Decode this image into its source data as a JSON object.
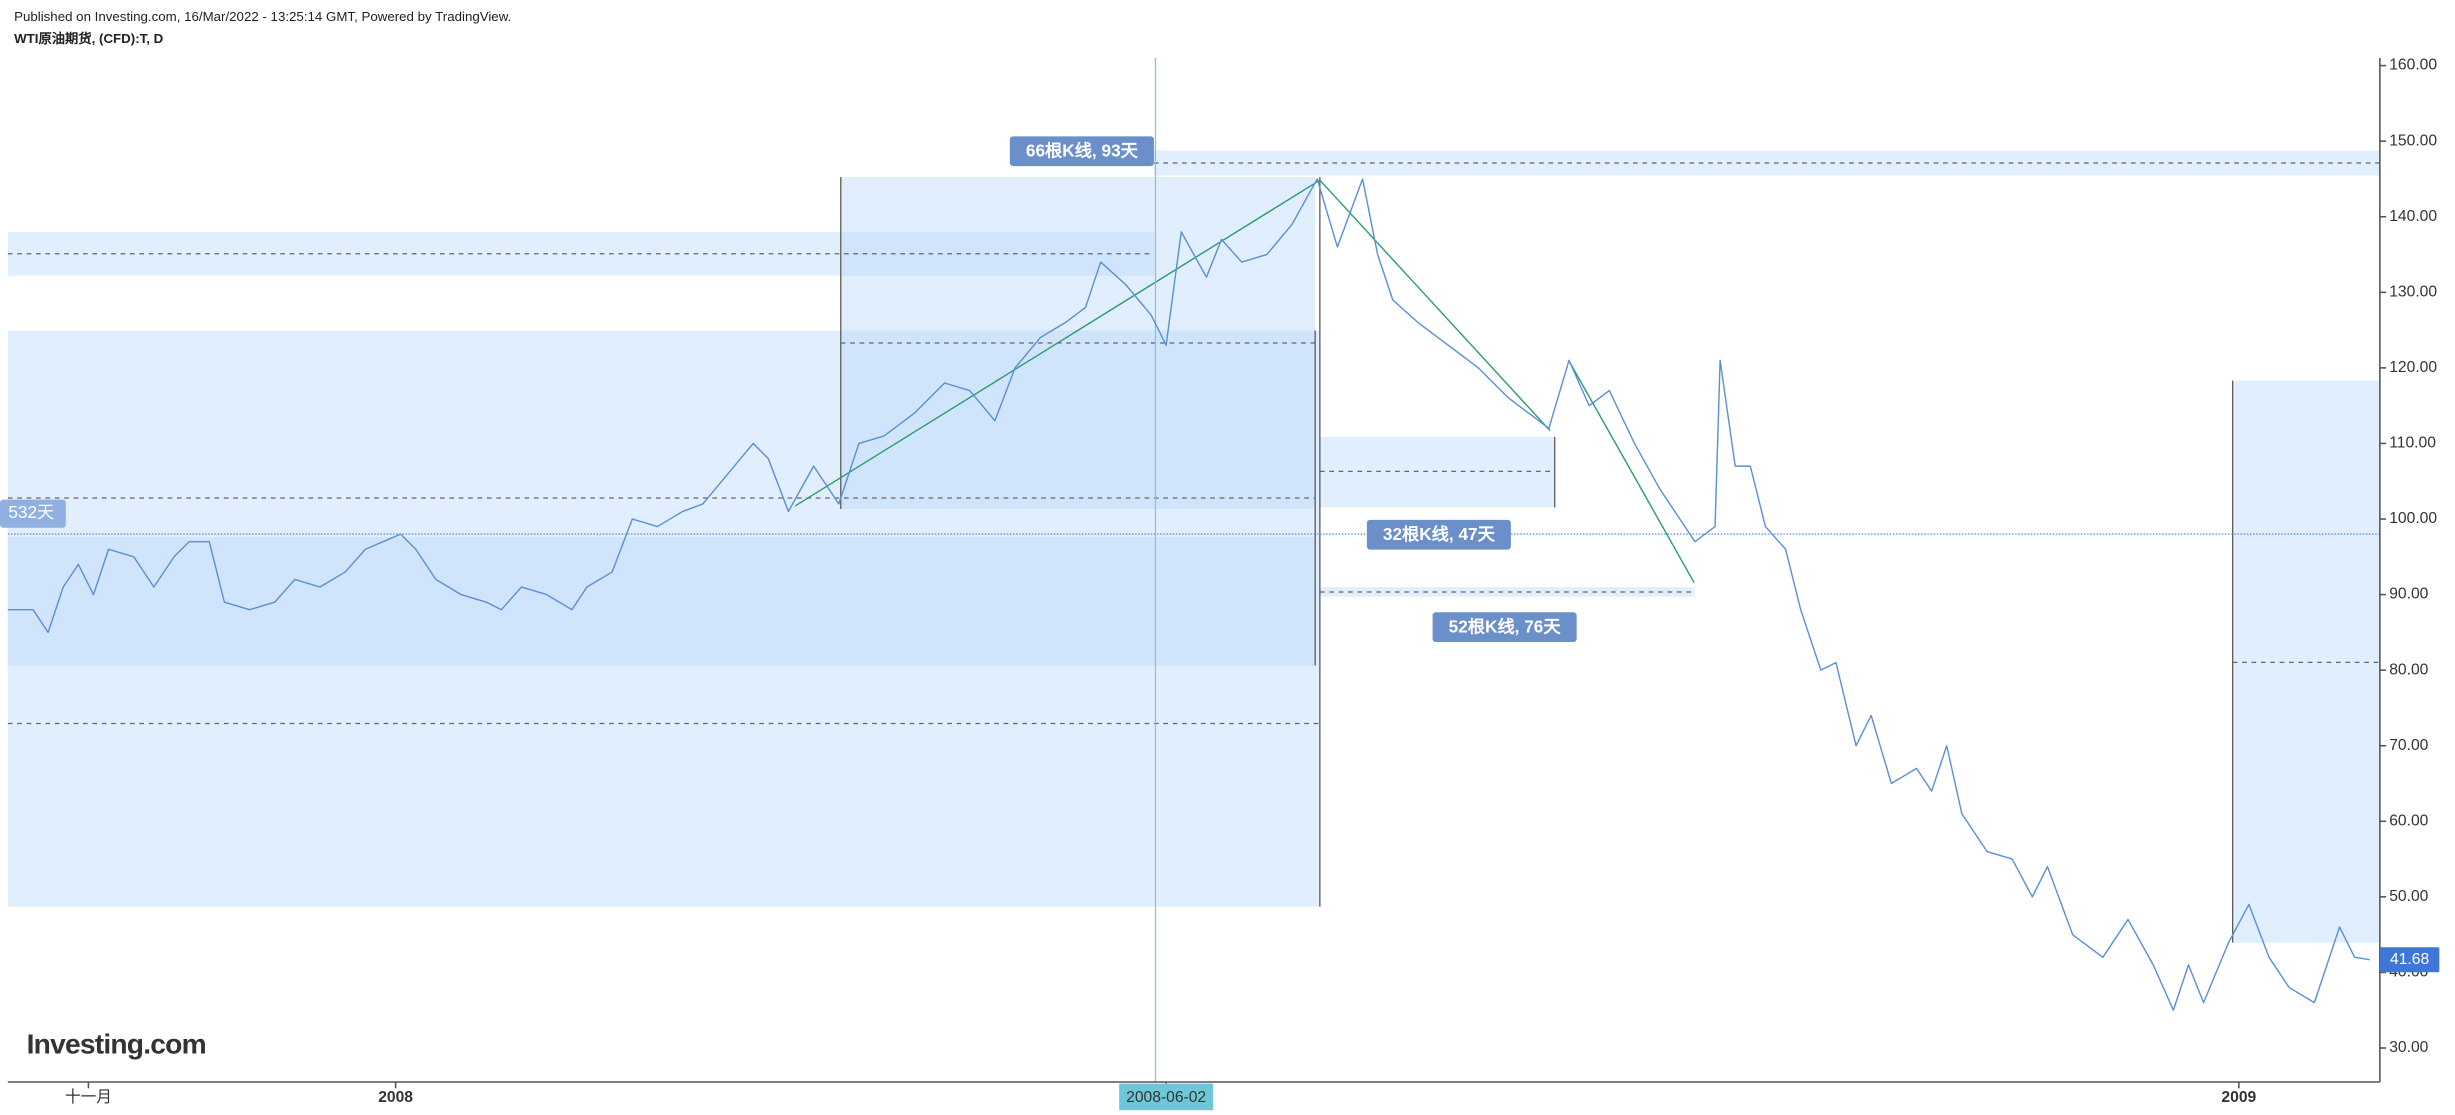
{
  "chart_data": {
    "type": "line",
    "title": "WTI原油期货, (CFD):T, D",
    "subtitle": "Published on Investing.com, 16/Mar/2022 - 13:25:14 GMT, Powered by TradingView.",
    "logo": "Investing.com",
    "annotations": [
      "66根K线, 93天",
      "32根K线, 47天",
      "52根K线, 76天",
      "532天"
    ],
    "xlim": [
      "2007-10-16",
      "2009-01-29"
    ],
    "xticks": [
      {
        "value": "2007-11-01",
        "label": "十一月"
      },
      {
        "value": "2008-01-01",
        "label": "2008"
      },
      "2008-06-02",
      {
        "value": "2009-01-01",
        "label": "2009"
      }
    ],
    "ylim": [
      25.5,
      161
    ],
    "yticks": [
      {
        "value": 30,
        "label": "30.00"
      },
      {
        "value": 40,
        "label": "40.00"
      },
      {
        "value": 50,
        "label": "50.00"
      },
      {
        "value": 60,
        "label": "60.00"
      },
      {
        "value": 70,
        "label": "70.00"
      },
      {
        "value": 80,
        "label": "80.00"
      },
      {
        "value": 90,
        "label": "90.00"
      },
      {
        "value": 100,
        "label": "100.00"
      },
      {
        "value": 110,
        "label": "110.00"
      },
      {
        "value": 120,
        "label": "120.00"
      },
      {
        "value": 130,
        "label": "130.00"
      },
      {
        "value": 140,
        "label": "140.00"
      },
      {
        "value": 150,
        "label": "150.00"
      },
      {
        "value": 160,
        "label": "160.00"
      }
    ],
    "x": [
      "2007-10-16",
      "2007-10-21",
      "2007-10-24",
      "2007-10-27",
      "2007-10-30",
      "2007-11-02",
      "2007-11-05",
      "2007-11-10",
      "2007-11-14",
      "2007-11-18",
      "2007-11-21",
      "2007-11-25",
      "2007-11-28",
      "2007-12-03",
      "2007-12-08",
      "2007-12-12",
      "2007-12-17",
      "2007-12-22",
      "2007-12-26",
      "2008-01-02",
      "2008-01-05",
      "2008-01-09",
      "2008-01-14",
      "2008-01-19",
      "2008-01-22",
      "2008-01-26",
      "2008-01-31",
      "2008-02-05",
      "2008-02-08",
      "2008-02-13",
      "2008-02-17",
      "2008-02-22",
      "2008-02-27",
      "2008-03-02",
      "2008-03-07",
      "2008-03-12",
      "2008-03-15",
      "2008-03-19",
      "2008-03-24",
      "2008-03-29",
      "2008-04-02",
      "2008-04-07",
      "2008-04-13",
      "2008-04-19",
      "2008-04-24",
      "2008-04-29",
      "2008-05-03",
      "2008-05-08",
      "2008-05-13",
      "2008-05-17",
      "2008-05-20",
      "2008-05-25",
      "2008-05-30",
      "2008-06-02",
      "2008-06-05",
      "2008-06-10",
      "2008-06-13",
      "2008-06-17",
      "2008-06-22",
      "2008-06-27",
      "2008-07-02",
      "2008-07-06",
      "2008-07-11",
      "2008-07-14",
      "2008-07-17",
      "2008-07-22",
      "2008-07-28",
      "2008-08-03",
      "2008-08-09",
      "2008-08-17",
      "2008-08-21",
      "2008-08-25",
      "2008-08-29",
      "2008-09-03",
      "2008-09-08",
      "2008-09-12",
      "2008-09-15",
      "2008-09-19",
      "2008-09-20",
      "2008-09-23",
      "2008-09-26",
      "2008-09-29",
      "2008-10-03",
      "2008-10-06",
      "2008-10-10",
      "2008-10-13",
      "2008-10-17",
      "2008-10-20",
      "2008-10-24",
      "2008-10-29",
      "2008-11-01",
      "2008-11-04",
      "2008-11-07",
      "2008-11-12",
      "2008-11-17",
      "2008-11-21",
      "2008-11-24",
      "2008-11-29",
      "2008-12-05",
      "2008-12-10",
      "2008-12-15",
      "2008-12-19",
      "2008-12-22",
      "2008-12-25",
      "2008-12-30",
      "2009-01-03",
      "2009-01-07",
      "2009-01-11",
      "2009-01-16",
      "2009-01-21",
      "2009-01-24",
      "2009-01-27"
    ],
    "series": [
      {
        "name": "WTI",
        "color": "#5b8fd6",
        "values": [
          88,
          88,
          85,
          91,
          94,
          90,
          96,
          95,
          91,
          95,
          97,
          97,
          89,
          88,
          89,
          92,
          91,
          93,
          96,
          98,
          96,
          92,
          90,
          89,
          88,
          91,
          90,
          88,
          91,
          93,
          100,
          99,
          101,
          102,
          106,
          110,
          108,
          101,
          107,
          102,
          110,
          111,
          114,
          118,
          117,
          113,
          120,
          124,
          126,
          128,
          134,
          131,
          127,
          123,
          138,
          132,
          137,
          134,
          135,
          139,
          145,
          136,
          145,
          135,
          129,
          126,
          123,
          120,
          116,
          112,
          121,
          115,
          117,
          110,
          104,
          100,
          97,
          99,
          121,
          107,
          107,
          99,
          96,
          88,
          80,
          81,
          70,
          74,
          65,
          67,
          64,
          70,
          61,
          56,
          55,
          50,
          54,
          45,
          42,
          47,
          41,
          35,
          41,
          36,
          44,
          49,
          42,
          38,
          36,
          46,
          42,
          41.68
        ]
      }
    ]
  }
}
